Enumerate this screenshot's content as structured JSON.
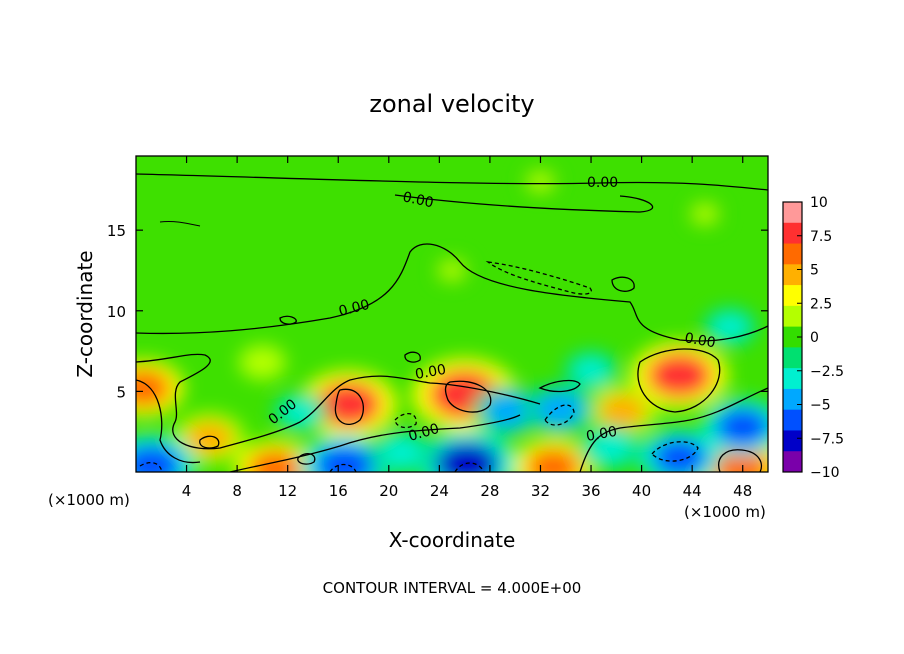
{
  "chart_data": {
    "type": "heatmap",
    "title": "zonal velocity",
    "xlabel": "X-coordinate",
    "ylabel": "Z-coordinate",
    "x_unit_left": "(×1000 m)",
    "x_unit_right": "(×1000 m)",
    "xlim": [
      0,
      50
    ],
    "ylim": [
      0,
      19.6
    ],
    "x_ticks": [
      4,
      8,
      12,
      16,
      20,
      24,
      28,
      32,
      36,
      40,
      44,
      48
    ],
    "x_tick_labels": [
      "4",
      "8",
      "12",
      "16",
      "20",
      "24",
      "28",
      "32",
      "36",
      "40",
      "44",
      "48"
    ],
    "y_ticks": [
      5,
      10,
      15
    ],
    "y_tick_labels": [
      "5",
      "10",
      "15"
    ],
    "footer": "CONTOUR INTERVAL = 4.000E+00",
    "colorbar": {
      "min": -10,
      "max": 10,
      "ticks": [
        10,
        7.5,
        5,
        2.5,
        0,
        -2.5,
        -5,
        -7.5,
        -10
      ],
      "tick_labels": [
        "10",
        "7.5",
        "5",
        "2.5",
        "0",
        "−2.5",
        "−5",
        "−7.5",
        "−10"
      ],
      "colors": [
        "#ff9999",
        "#ff3030",
        "#ff6a00",
        "#ffb000",
        "#ffff00",
        "#b4ff00",
        "#33dd00",
        "#00e070",
        "#00f0d0",
        "#00a8ff",
        "#0050ff",
        "#0000c8",
        "#7a00aa"
      ]
    },
    "contour_labels": [
      "0.00",
      "0.00",
      "0.00",
      "0.00",
      "0.00",
      "0.00",
      "0.00",
      "0.00",
      "0.00"
    ],
    "features": [
      {
        "x": 16.8,
        "z": 4.2,
        "value": 8
      },
      {
        "x": 26.0,
        "z": 4.8,
        "value": 9
      },
      {
        "x": 43.0,
        "z": 6.0,
        "value": 8
      },
      {
        "x": 47.8,
        "z": 0.3,
        "value": 7
      },
      {
        "x": 11.0,
        "z": 0.2,
        "value": 6
      },
      {
        "x": 33.0,
        "z": 0.3,
        "value": 6
      },
      {
        "x": 0.6,
        "z": 5.2,
        "value": 6
      },
      {
        "x": 5.8,
        "z": 2.1,
        "value": 5
      },
      {
        "x": 38.5,
        "z": 3.8,
        "value": 5
      },
      {
        "x": 26.2,
        "z": 0.5,
        "value": -8
      },
      {
        "x": 1.2,
        "z": 0.4,
        "value": -7
      },
      {
        "x": 16.5,
        "z": 0.4,
        "value": -7
      },
      {
        "x": 43.0,
        "z": 0.9,
        "value": -6
      },
      {
        "x": 48.0,
        "z": 2.8,
        "value": -6
      },
      {
        "x": 29.5,
        "z": 3.8,
        "value": -5
      },
      {
        "x": 33.5,
        "z": 3.9,
        "value": -5
      },
      {
        "x": 21.0,
        "z": 1.2,
        "value": -4
      },
      {
        "x": 37.5,
        "z": 1.5,
        "value": -4
      },
      {
        "x": 13.0,
        "z": 3.7,
        "value": -3
      },
      {
        "x": 36.0,
        "z": 6.3,
        "value": -3
      },
      {
        "x": 47.0,
        "z": 9.0,
        "value": -3
      },
      {
        "x": 10.0,
        "z": 6.8,
        "value": 2
      },
      {
        "x": 32.0,
        "z": 18.0,
        "value": 1
      },
      {
        "x": 25.0,
        "z": 12.5,
        "value": 1
      },
      {
        "x": 45.0,
        "z": 16.0,
        "value": 1
      }
    ]
  }
}
